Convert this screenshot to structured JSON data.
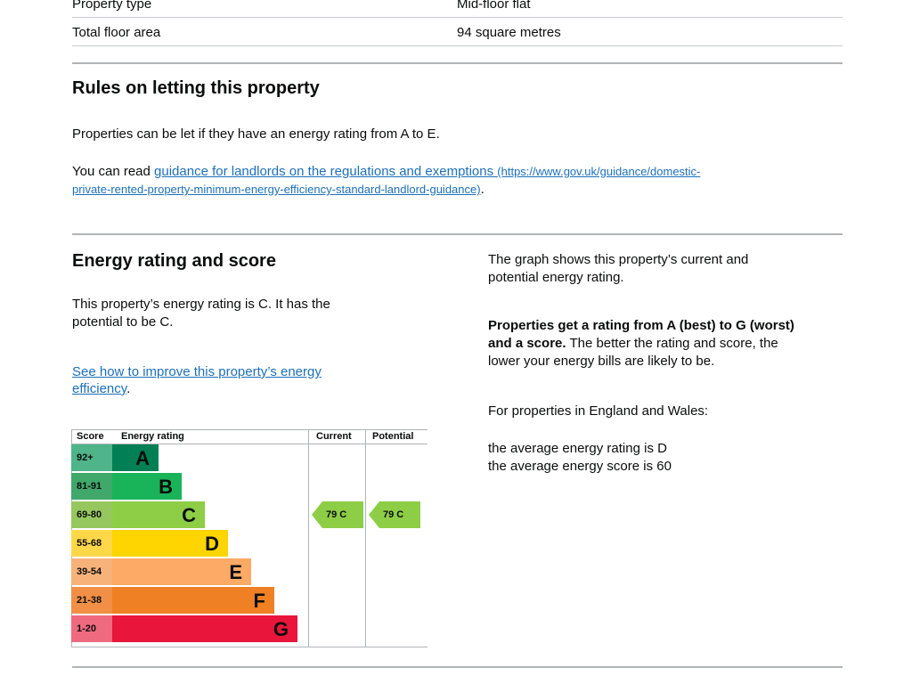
{
  "summary": {
    "rows": [
      {
        "label": "Property type",
        "value": "Mid-floor flat"
      },
      {
        "label": "Total floor area",
        "value": "94 square metres"
      }
    ]
  },
  "letting": {
    "heading": "Rules on letting this property",
    "text1": "Properties can be let if they have an energy rating from A to E.",
    "read_prefix": "You can read ",
    "link_text": "guidance for landlords on the regulations and exemptions",
    "link_url_line1": "(https://www.gov.uk/guidance/domestic-",
    "link_url_line2": "private-rented-property-minimum-energy-efficiency-standard-landlord-guidance)",
    "read_suffix": "."
  },
  "energy": {
    "heading": "Energy rating and score",
    "text1_line1": "This property’s energy rating is C. It has the",
    "text1_line2": "potential to be C.",
    "improve_link_line1": "See how to improve this property’s energy",
    "improve_link_line2": "efficiency",
    "improve_suffix": ".",
    "right_text1_line1": "The graph shows this property’s current and",
    "right_text1_line2": "potential energy rating.",
    "right_bold": "Properties get a rating from A (best) to G (worst) and a score.",
    "right_bold_line1": "Properties get a rating from A (best) to G (worst)",
    "right_bold_line2": "and a score.",
    "right_rest_line2": " The better the rating and score, the",
    "right_rest_line3": "lower your energy bills are likely to be.",
    "region_text": "For properties in England and Wales:",
    "avg_rating": "the average energy rating is D",
    "avg_score": "the average energy score is 60"
  },
  "chart": {
    "headers": {
      "score": "Score",
      "rating": "Energy rating",
      "current": "Current",
      "potential": "Potential"
    },
    "bands": [
      {
        "range": "92+",
        "letter": "A",
        "color": "#008054",
        "score_bg": "#4fb48a"
      },
      {
        "range": "81-91",
        "letter": "B",
        "color": "#19b459",
        "score_bg": "#3fa86a"
      },
      {
        "range": "69-80",
        "letter": "C",
        "color": "#8dce46",
        "score_bg": "#96c75f"
      },
      {
        "range": "55-68",
        "letter": "D",
        "color": "#ffd500",
        "score_bg": "#ffd84a"
      },
      {
        "range": "39-54",
        "letter": "E",
        "color": "#fcaa65",
        "score_bg": "#f7b27a"
      },
      {
        "range": "21-38",
        "letter": "F",
        "color": "#ef8023",
        "score_bg": "#f08f45"
      },
      {
        "range": "1-20",
        "letter": "G",
        "color": "#e9153b",
        "score_bg": "#ef6a7f"
      }
    ],
    "current": {
      "score": 79,
      "letter": "C",
      "label": "79  C",
      "color": "#8dce46"
    },
    "potential": {
      "score": 79,
      "letter": "C",
      "label": "79  C",
      "color": "#8dce46"
    }
  }
}
